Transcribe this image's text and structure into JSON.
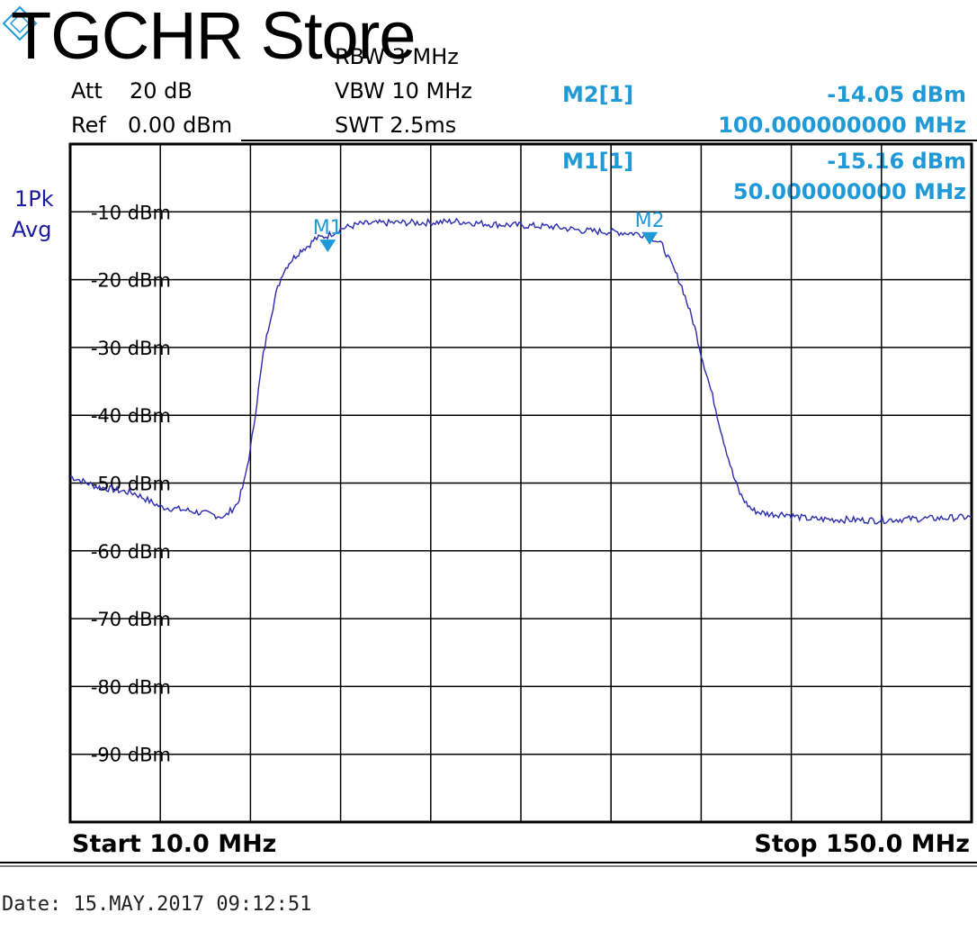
{
  "watermark": "TGCHR Store",
  "settings": {
    "att_label": "Att",
    "att_value": "20 dB",
    "ref_label": "Ref",
    "ref_value": "0.00 dBm",
    "rbw": "RBW 3 MHz",
    "vbw": "VBW 10 MHz",
    "swt": "SWT 2.5ms"
  },
  "trace_mode": [
    "1Pk",
    "Avg"
  ],
  "markers": [
    {
      "label": "M2[1]",
      "level": "-14.05 dBm",
      "freq": "100.000000000 MHz"
    },
    {
      "label": "M1[1]",
      "level": "-15.16 dBm",
      "freq": "50.000000000 MHz"
    }
  ],
  "footer": {
    "start": "Start 10.0 MHz",
    "stop": "Stop 150.0 MHz"
  },
  "date": "Date: 15.MAY.2017  09:12:51",
  "colors": {
    "trace": "#2b2bb0",
    "marker": "#1f9ad6",
    "grid": "#000000"
  },
  "chart_data": {
    "type": "line",
    "xlim": [
      10,
      150
    ],
    "ylim": [
      -100,
      0
    ],
    "xunit": "MHz",
    "yunit": "dBm",
    "grid": true,
    "y_ticks": [
      -10,
      -20,
      -30,
      -40,
      -50,
      -60,
      -70,
      -80,
      -90
    ],
    "y_tick_labels": [
      "-10 dBm",
      "-20 dBm",
      "-30 dBm",
      "-40 dBm",
      "-50 dBm",
      "-60 dBm",
      "-70 dBm",
      "-80 dBm",
      "-90 dBm"
    ],
    "series": [
      {
        "x": [
          10,
          14,
          17,
          20,
          24,
          28,
          31,
          34,
          36,
          37,
          38,
          39,
          40,
          41,
          42,
          43,
          44,
          45,
          46,
          47,
          48,
          50,
          52,
          55,
          60,
          65,
          70,
          75,
          80,
          85,
          90,
          95,
          98,
          100,
          102,
          104,
          105,
          106,
          107,
          108,
          109,
          110,
          111,
          112,
          113,
          114,
          115,
          116,
          117,
          118,
          119,
          120,
          121,
          122,
          123,
          125,
          130,
          135,
          140,
          145,
          150
        ],
        "y": [
          -49,
          -50.5,
          -51,
          -51.5,
          -53.5,
          -54,
          -54.5,
          -55,
          -53,
          -50,
          -45,
          -38,
          -31,
          -26,
          -22,
          -19,
          -17.5,
          -16.5,
          -15.5,
          -15,
          -14,
          -13.5,
          -12.5,
          -11.8,
          -11.6,
          -11.6,
          -11.4,
          -11.8,
          -12,
          -12.2,
          -12.8,
          -13,
          -13.2,
          -13.5,
          -15,
          -19,
          -21,
          -24,
          -27,
          -31,
          -34.5,
          -38,
          -42,
          -45.5,
          -49,
          -51.5,
          -53,
          -54,
          -54.3,
          -54.5,
          -54.6,
          -54.6,
          -54.5,
          -54.8,
          -55,
          -55.3,
          -55.4,
          -55.5,
          -55.3,
          -55.2,
          -55
        ]
      }
    ],
    "markers": [
      {
        "name": "M1",
        "x": 50,
        "y": -15.16
      },
      {
        "name": "M2",
        "x": 100,
        "y": -14.05
      }
    ]
  }
}
